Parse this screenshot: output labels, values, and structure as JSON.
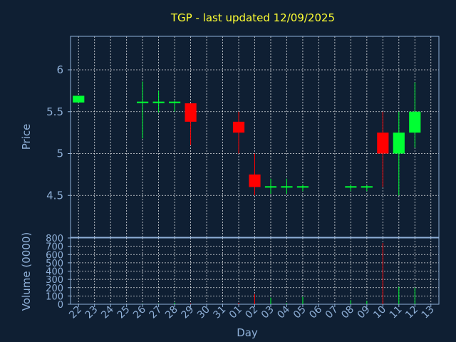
{
  "chart_data": {
    "type": "candlestick",
    "title": "TGP - last updated 12/09/2025",
    "xlabel": "Day",
    "price_ylabel": "Price",
    "volume_ylabel": "Volume (0000)",
    "price_ylim": [
      4.0,
      6.4
    ],
    "price_yticks": [
      "4.5",
      "5",
      "5.5",
      "6"
    ],
    "volume_ylim": [
      0,
      800
    ],
    "volume_yticks": [
      "0",
      "100",
      "200",
      "300",
      "400",
      "500",
      "600",
      "700",
      "800"
    ],
    "grid": true,
    "colors": {
      "up": "#00ff33",
      "down": "#ff0000",
      "background": "#0f1f33",
      "title": "#ffff33",
      "axis": "#8fb0d8"
    },
    "x_labels": [
      "22",
      "23",
      "24",
      "25",
      "26",
      "27",
      "28",
      "29",
      "30",
      "31",
      "01",
      "02",
      "03",
      "04",
      "05",
      "06",
      "07",
      "08",
      "09",
      "10",
      "11",
      "12",
      "13"
    ],
    "candles": [
      {
        "x": 0,
        "open": 5.61,
        "close": 5.69,
        "high": 5.69,
        "low": 5.61,
        "volume": 0
      },
      {
        "x": 4,
        "open": 5.61,
        "close": 5.62,
        "high": 5.86,
        "low": 5.18,
        "volume": 4
      },
      {
        "x": 5,
        "open": 5.61,
        "close": 5.62,
        "high": 5.75,
        "low": 5.49,
        "volume": 4
      },
      {
        "x": 6,
        "open": 5.61,
        "close": 5.62,
        "high": 5.63,
        "low": 5.5,
        "volume": 20
      },
      {
        "x": 7,
        "open": 5.6,
        "close": 5.38,
        "high": 5.6,
        "low": 5.1,
        "volume": 8
      },
      {
        "x": 10,
        "open": 5.38,
        "close": 5.25,
        "high": 5.5,
        "low": 5.0,
        "volume": 15
      },
      {
        "x": 11,
        "open": 4.75,
        "close": 4.6,
        "high": 5.0,
        "low": 4.5,
        "volume": 120
      },
      {
        "x": 12,
        "open": 4.6,
        "close": 4.61,
        "high": 4.7,
        "low": 4.52,
        "volume": 80
      },
      {
        "x": 13,
        "open": 4.6,
        "close": 4.61,
        "high": 4.7,
        "low": 4.52,
        "volume": 12
      },
      {
        "x": 14,
        "open": 4.6,
        "close": 4.61,
        "high": 4.63,
        "low": 4.55,
        "volume": 90
      },
      {
        "x": 17,
        "open": 4.6,
        "close": 4.61,
        "high": 4.63,
        "low": 4.55,
        "volume": 50
      },
      {
        "x": 18,
        "open": 4.6,
        "close": 4.61,
        "high": 4.62,
        "low": 4.55,
        "volume": 40
      },
      {
        "x": 19,
        "open": 5.25,
        "close": 5.0,
        "high": 5.5,
        "low": 4.6,
        "volume": 740
      },
      {
        "x": 20,
        "open": 5.0,
        "close": 5.25,
        "high": 5.5,
        "low": 4.5,
        "volume": 210
      },
      {
        "x": 21,
        "open": 5.25,
        "close": 5.5,
        "high": 5.85,
        "low": 5.07,
        "volume": 200
      }
    ]
  }
}
